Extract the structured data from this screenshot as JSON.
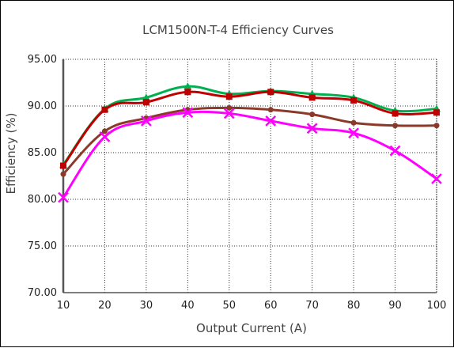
{
  "chart_data": {
    "type": "line",
    "title": "LCM1500N-T-4 Efficiency Curves",
    "xlabel": "Output Current (A)",
    "ylabel": "Efficiency (%)",
    "xlim": [
      10,
      100
    ],
    "ylim": [
      70,
      95
    ],
    "x_ticks": [
      "10",
      "20",
      "30",
      "40",
      "50",
      "60",
      "70",
      "80",
      "90",
      "100"
    ],
    "y_ticks": [
      "70.00",
      "75.00",
      "80.00",
      "85.00",
      "90.00",
      "95.00"
    ],
    "grid": true,
    "x": [
      10,
      20,
      30,
      40,
      50,
      60,
      70,
      80,
      90,
      100
    ],
    "series": [
      {
        "color": "#8B3A2A",
        "marker": "circle",
        "values": [
          82.7,
          87.3,
          88.7,
          89.6,
          89.8,
          89.6,
          89.1,
          88.2,
          87.9,
          87.9
        ]
      },
      {
        "color": "#00B050",
        "marker": "triangle",
        "values": [
          83.7,
          89.7,
          90.9,
          92.1,
          91.3,
          91.6,
          91.3,
          90.9,
          89.5,
          89.7
        ]
      },
      {
        "color": "#C00000",
        "marker": "square",
        "values": [
          83.6,
          89.6,
          90.4,
          91.5,
          91.0,
          91.5,
          90.9,
          90.6,
          89.2,
          89.3
        ]
      },
      {
        "color": "#FF00FF",
        "marker": "x",
        "values": [
          80.2,
          86.7,
          88.4,
          89.3,
          89.2,
          88.4,
          87.6,
          87.1,
          85.2,
          82.2
        ]
      }
    ]
  }
}
